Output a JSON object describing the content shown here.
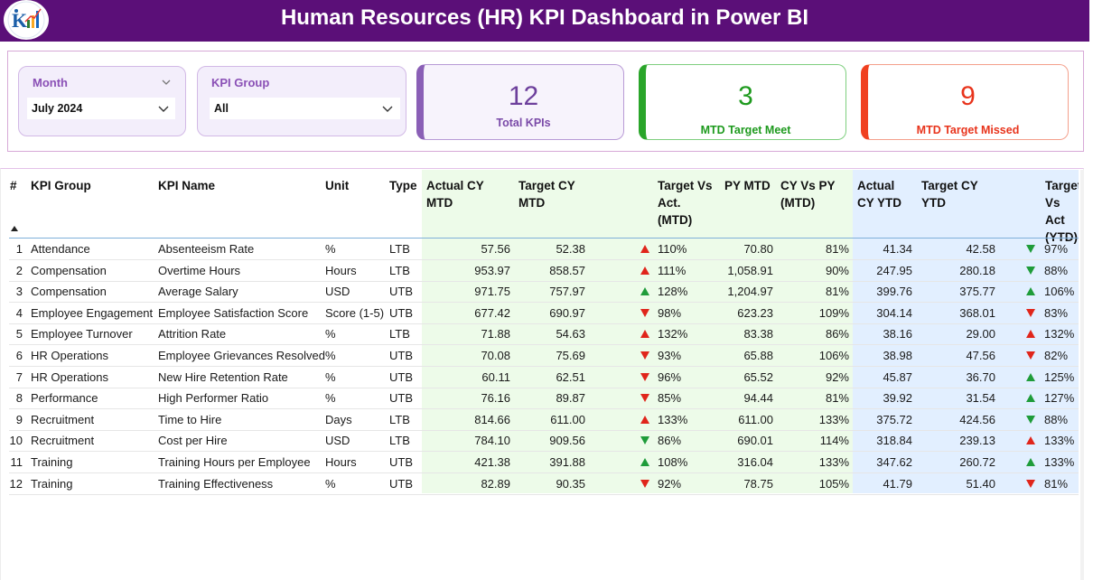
{
  "header": {
    "title": "Human Resources (HR) KPI Dashboard in Power BI",
    "logo_icon": "kpi-bar-chart-logo"
  },
  "filters": {
    "month": {
      "label": "Month",
      "value": "July 2024"
    },
    "kpi_group": {
      "label": "KPI Group",
      "value": "All"
    }
  },
  "cards": {
    "total": {
      "value": "12",
      "label": "Total KPIs",
      "accent": "#8a5fb6"
    },
    "met": {
      "value": "3",
      "label": "MTD Target Meet",
      "accent": "#2aa52a"
    },
    "missed": {
      "value": "9",
      "label": "MTD Target Missed",
      "accent": "#f04020"
    }
  },
  "colors": {
    "header_bg": "#5b0f78",
    "mtd_bg": "#edfbe9",
    "ytd_bg": "#e2efff",
    "up_green": "#1f9c3a",
    "red": "#e0251b"
  },
  "table": {
    "columns": {
      "num": "#",
      "group": "KPI Group",
      "name": "KPI Name",
      "unit": "Unit",
      "type": "Type",
      "actual_mtd": [
        "Actual CY",
        "MTD"
      ],
      "target_mtd": [
        "Target CY",
        "MTD"
      ],
      "tva_mtd": [
        "Target Vs",
        "Act.",
        "(MTD)"
      ],
      "py_mtd": "PY MTD",
      "cy_vs_py": [
        "CY Vs PY",
        "(MTD)"
      ],
      "actual_ytd": [
        "Actual",
        "CY YTD"
      ],
      "target_ytd": [
        "Target CY",
        "YTD"
      ],
      "tva_ytd": [
        "Target",
        "Vs Act",
        "(YTD)"
      ]
    },
    "rows": [
      {
        "num": "1",
        "group": "Attendance",
        "name": "Absenteeism Rate",
        "unit": "%",
        "type": "LTB",
        "actual_mtd": "57.56",
        "target_mtd": "52.38",
        "mtd_icon": "up-red",
        "tva_mtd": "110%",
        "py_mtd": "70.80",
        "cy_vs_py": "81%",
        "actual_ytd": "41.34",
        "target_ytd": "42.58",
        "ytd_icon": "down-green",
        "tva_ytd": "97%"
      },
      {
        "num": "2",
        "group": "Compensation",
        "name": "Overtime Hours",
        "unit": "Hours",
        "type": "LTB",
        "actual_mtd": "953.97",
        "target_mtd": "858.57",
        "mtd_icon": "up-red",
        "tva_mtd": "111%",
        "py_mtd": "1,058.91",
        "cy_vs_py": "90%",
        "actual_ytd": "247.95",
        "target_ytd": "280.18",
        "ytd_icon": "down-green",
        "tva_ytd": "88%"
      },
      {
        "num": "3",
        "group": "Compensation",
        "name": "Average Salary",
        "unit": "USD",
        "type": "UTB",
        "actual_mtd": "971.75",
        "target_mtd": "757.97",
        "mtd_icon": "up-green",
        "tva_mtd": "128%",
        "py_mtd": "1,204.97",
        "cy_vs_py": "81%",
        "actual_ytd": "399.76",
        "target_ytd": "375.77",
        "ytd_icon": "up-green",
        "tva_ytd": "106%"
      },
      {
        "num": "4",
        "group": "Employee Engagement",
        "name": "Employee Satisfaction Score",
        "unit": "Score (1-5)",
        "type": "UTB",
        "actual_mtd": "677.42",
        "target_mtd": "690.97",
        "mtd_icon": "down-red",
        "tva_mtd": "98%",
        "py_mtd": "623.23",
        "cy_vs_py": "109%",
        "actual_ytd": "304.14",
        "target_ytd": "368.01",
        "ytd_icon": "down-red",
        "tva_ytd": "83%"
      },
      {
        "num": "5",
        "group": "Employee Turnover",
        "name": "Attrition Rate",
        "unit": "%",
        "type": "LTB",
        "actual_mtd": "71.88",
        "target_mtd": "54.63",
        "mtd_icon": "up-red",
        "tva_mtd": "132%",
        "py_mtd": "83.38",
        "cy_vs_py": "86%",
        "actual_ytd": "38.16",
        "target_ytd": "29.00",
        "ytd_icon": "up-red",
        "tva_ytd": "132%"
      },
      {
        "num": "6",
        "group": "HR Operations",
        "name": "Employee Grievances Resolved",
        "unit": "%",
        "type": "UTB",
        "actual_mtd": "70.08",
        "target_mtd": "75.69",
        "mtd_icon": "down-red",
        "tva_mtd": "93%",
        "py_mtd": "65.88",
        "cy_vs_py": "106%",
        "actual_ytd": "38.98",
        "target_ytd": "47.56",
        "ytd_icon": "down-red",
        "tva_ytd": "82%"
      },
      {
        "num": "7",
        "group": "HR Operations",
        "name": "New Hire Retention Rate",
        "unit": "%",
        "type": "UTB",
        "actual_mtd": "60.11",
        "target_mtd": "62.51",
        "mtd_icon": "down-red",
        "tva_mtd": "96%",
        "py_mtd": "65.52",
        "cy_vs_py": "92%",
        "actual_ytd": "45.87",
        "target_ytd": "36.70",
        "ytd_icon": "up-green",
        "tva_ytd": "125%"
      },
      {
        "num": "8",
        "group": "Performance",
        "name": "High Performer Ratio",
        "unit": "%",
        "type": "UTB",
        "actual_mtd": "76.16",
        "target_mtd": "89.87",
        "mtd_icon": "down-red",
        "tva_mtd": "85%",
        "py_mtd": "94.44",
        "cy_vs_py": "81%",
        "actual_ytd": "39.92",
        "target_ytd": "31.54",
        "ytd_icon": "up-green",
        "tva_ytd": "127%"
      },
      {
        "num": "9",
        "group": "Recruitment",
        "name": "Time to Hire",
        "unit": "Days",
        "type": "LTB",
        "actual_mtd": "814.66",
        "target_mtd": "611.00",
        "mtd_icon": "up-red",
        "tva_mtd": "133%",
        "py_mtd": "611.00",
        "cy_vs_py": "133%",
        "actual_ytd": "375.72",
        "target_ytd": "424.56",
        "ytd_icon": "down-green",
        "tva_ytd": "88%"
      },
      {
        "num": "10",
        "group": "Recruitment",
        "name": "Cost per Hire",
        "unit": "USD",
        "type": "LTB",
        "actual_mtd": "784.10",
        "target_mtd": "909.56",
        "mtd_icon": "down-green",
        "tva_mtd": "86%",
        "py_mtd": "690.01",
        "cy_vs_py": "114%",
        "actual_ytd": "318.84",
        "target_ytd": "239.13",
        "ytd_icon": "up-red",
        "tva_ytd": "133%"
      },
      {
        "num": "11",
        "group": "Training",
        "name": "Training Hours per Employee",
        "unit": "Hours",
        "type": "UTB",
        "actual_mtd": "421.38",
        "target_mtd": "391.88",
        "mtd_icon": "up-green",
        "tva_mtd": "108%",
        "py_mtd": "316.04",
        "cy_vs_py": "133%",
        "actual_ytd": "347.62",
        "target_ytd": "260.72",
        "ytd_icon": "up-green",
        "tva_ytd": "133%"
      },
      {
        "num": "12",
        "group": "Training",
        "name": "Training Effectiveness",
        "unit": "%",
        "type": "UTB",
        "actual_mtd": "82.89",
        "target_mtd": "90.35",
        "mtd_icon": "down-red",
        "tva_mtd": "92%",
        "py_mtd": "78.75",
        "cy_vs_py": "105%",
        "actual_ytd": "41.79",
        "target_ytd": "51.40",
        "ytd_icon": "down-red",
        "tva_ytd": "81%"
      }
    ]
  }
}
